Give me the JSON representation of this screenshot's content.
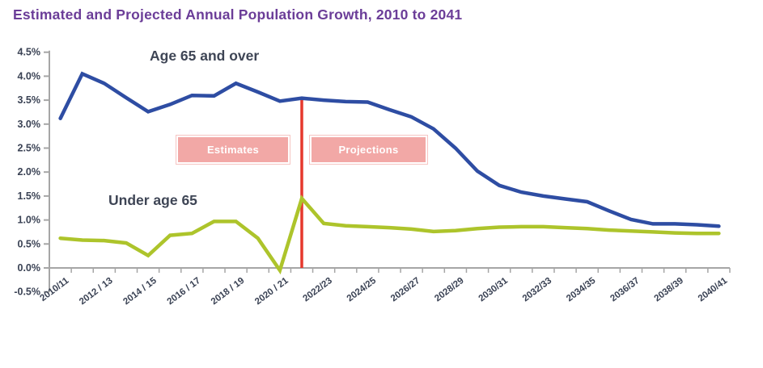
{
  "title": "Estimated and Projected Annual Population Growth, 2010 to 2041",
  "colors": {
    "title": "#6b3d98",
    "age65_line": "#2e4da3",
    "under65_line": "#adc42b",
    "divider_line": "#e6382c",
    "badge_bg": "#f2a8a6",
    "badge_text": "#ffffff",
    "axis": "#a6a6a6",
    "tick_label": "#3a4254",
    "series_label": "#3e4555"
  },
  "annotations": {
    "age65_label": "Age 65 and over",
    "under65_label": "Under age 65",
    "estimates_label": "Estimates",
    "projections_label": "Projections"
  },
  "chart_data": {
    "type": "line",
    "title": "Estimated and Projected Annual Population Growth, 2010 to 2041",
    "xlabel": "",
    "ylabel": "",
    "grid": false,
    "legend_position": "inline-labels",
    "ylim": [
      -0.5,
      4.5
    ],
    "y_tick_values": [
      4.5,
      4.0,
      3.5,
      3.0,
      2.5,
      2.0,
      1.5,
      1.0,
      0.5,
      0.0,
      -0.5
    ],
    "y_tick_labels": [
      "4.5%",
      "4.0%",
      "3.5%",
      "3.0%",
      "2.5%",
      "2.0%",
      "1.5%",
      "1.0%",
      "0.5%",
      "0.0%",
      "-0.5%"
    ],
    "x": [
      "2010/11",
      "2011/12",
      "2012/13",
      "2013/14",
      "2014/15",
      "2015/16",
      "2016/17",
      "2017/18",
      "2018/19",
      "2019/20",
      "2020/21",
      "2021/22",
      "2022/23",
      "2023/24",
      "2024/25",
      "2025/26",
      "2026/27",
      "2027/28",
      "2028/29",
      "2029/30",
      "2030/31",
      "2031/32",
      "2032/33",
      "2033/34",
      "2034/35",
      "2035/36",
      "2036/37",
      "2037/38",
      "2038/39",
      "2039/40",
      "2040/41"
    ],
    "x_tick_labels": [
      "2010/11",
      "2012 / 13",
      "2014 / 15",
      "2016 / 17",
      "2018 / 19",
      "2020 / 21",
      "2022/23",
      "2024/25",
      "2026/27",
      "2028/29",
      "2030/31",
      "2032/33",
      "2034/35",
      "2036/37",
      "2038/39",
      "2040/41"
    ],
    "series": [
      {
        "name": "Age 65 and over",
        "color": "#2e4da3",
        "values": [
          3.12,
          4.05,
          3.85,
          3.55,
          3.26,
          3.41,
          3.6,
          3.59,
          3.85,
          3.67,
          3.48,
          3.54,
          3.5,
          3.47,
          3.46,
          3.3,
          3.15,
          2.9,
          2.5,
          2.02,
          1.72,
          1.58,
          1.5,
          1.44,
          1.38,
          1.19,
          1.01,
          0.92,
          0.92,
          0.9,
          0.87
        ]
      },
      {
        "name": "Under age 65",
        "color": "#adc42b",
        "values": [
          0.62,
          0.58,
          0.57,
          0.52,
          0.26,
          0.68,
          0.72,
          0.97,
          0.97,
          0.62,
          -0.05,
          1.45,
          0.93,
          0.88,
          0.86,
          0.84,
          0.81,
          0.76,
          0.78,
          0.82,
          0.85,
          0.86,
          0.86,
          0.84,
          0.82,
          0.79,
          0.77,
          0.75,
          0.73,
          0.72,
          0.72
        ]
      }
    ],
    "divider_x_category": "2021/22",
    "estimates_region_label": "Estimates",
    "projections_region_label": "Projections"
  }
}
